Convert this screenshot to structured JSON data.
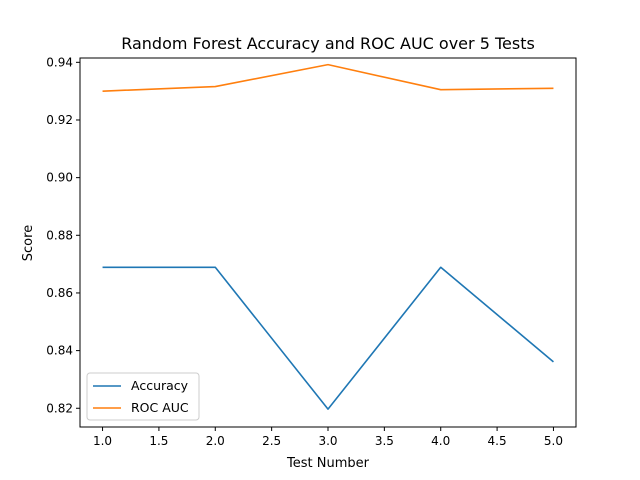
{
  "chart_data": {
    "type": "line",
    "title": "Random Forest Accuracy and ROC AUC over 5 Tests",
    "xlabel": "Test Number",
    "ylabel": "Score",
    "x": [
      1,
      2,
      3,
      4,
      5
    ],
    "xlim": [
      0.8,
      5.2
    ],
    "ylim": [
      0.8135,
      0.9415
    ],
    "xticks": [
      1.0,
      1.5,
      2.0,
      2.5,
      3.0,
      3.5,
      4.0,
      4.5,
      5.0
    ],
    "xtick_labels": [
      "1.0",
      "1.5",
      "2.0",
      "2.5",
      "3.0",
      "3.5",
      "4.0",
      "4.5",
      "5.0"
    ],
    "yticks": [
      0.82,
      0.84,
      0.86,
      0.88,
      0.9,
      0.92,
      0.94
    ],
    "ytick_labels": [
      "0.82",
      "0.84",
      "0.86",
      "0.88",
      "0.90",
      "0.92",
      "0.94"
    ],
    "grid": false,
    "legend_position": "lower-left",
    "series": [
      {
        "name": "Accuracy",
        "color": "#1f77b4",
        "values": [
          0.8689,
          0.8689,
          0.8197,
          0.8689,
          0.8361
        ]
      },
      {
        "name": "ROC AUC",
        "color": "#ff7f0e",
        "values": [
          0.93,
          0.9316,
          0.9392,
          0.9305,
          0.931
        ]
      }
    ]
  }
}
